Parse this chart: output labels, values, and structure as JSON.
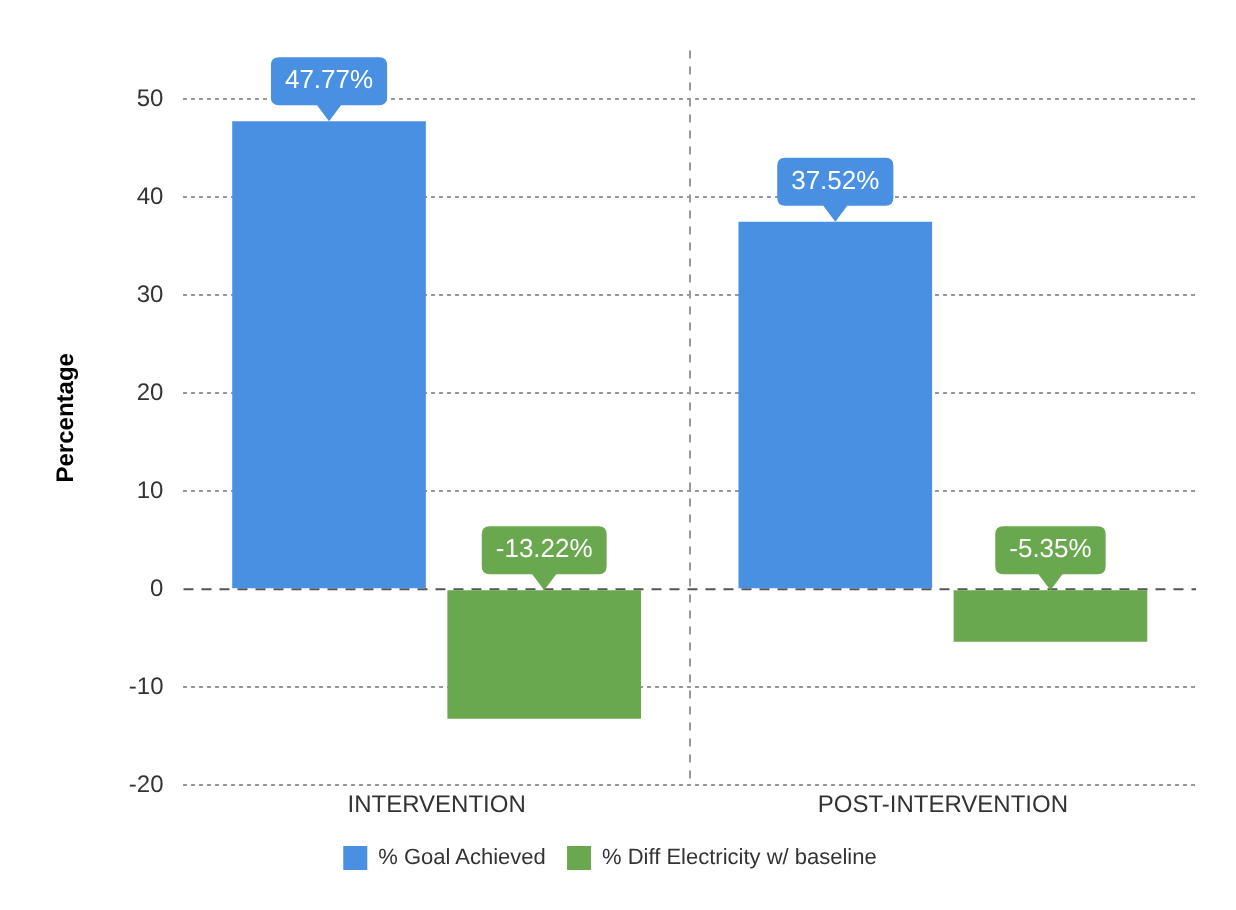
{
  "chart_data": {
    "type": "bar",
    "ylabel": "Percentage",
    "categories": [
      "INTERVENTION",
      "POST-INTERVENTION"
    ],
    "series": [
      {
        "name": "% Goal Achieved",
        "color": "#4a90e2",
        "values": [
          47.77,
          37.52
        ]
      },
      {
        "name": "% Diff Electricity w/ baseline",
        "color": "#6aa84f",
        "values": [
          -13.22,
          -5.35
        ]
      }
    ],
    "ylim": [
      -20,
      55
    ],
    "yticks": [
      -20,
      -10,
      0,
      10,
      20,
      30,
      40,
      50
    ],
    "grid": true,
    "legend": "bottom",
    "value_labels": [
      [
        "47.77%",
        "37.52%"
      ],
      [
        "-13.22%",
        "-5.35%"
      ]
    ],
    "ref_lines": [
      {
        "axis": "y",
        "value": 0,
        "line_style": "dashed",
        "color": "#555555"
      }
    ]
  }
}
